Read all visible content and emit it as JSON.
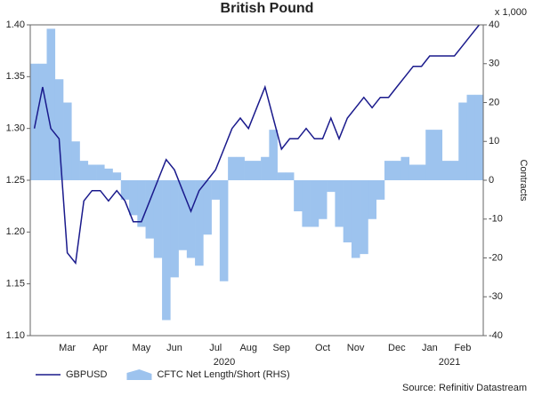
{
  "chart_data": {
    "type": "dual_line_area",
    "title": "British Pound",
    "y2_unit": "x 1,000",
    "y2_label": "Contracts",
    "source": "Source: Refinitiv Datastream",
    "year_labels": [
      "2020",
      "2021"
    ],
    "categories": [
      null,
      null,
      null,
      null,
      "Mar",
      null,
      null,
      null,
      "Apr",
      null,
      null,
      null,
      null,
      "May",
      null,
      null,
      null,
      "Jun",
      null,
      null,
      null,
      null,
      "Jul",
      null,
      null,
      null,
      "Aug",
      null,
      null,
      null,
      "Sep",
      null,
      null,
      null,
      null,
      "Oct",
      null,
      null,
      null,
      "Nov",
      null,
      null,
      null,
      null,
      "Dec",
      null,
      null,
      null,
      "Jan",
      null,
      null,
      null,
      "Feb",
      null,
      null
    ],
    "series": [
      {
        "name": "GBPUSD",
        "color": "#1a1a8c",
        "kind": "line",
        "values": [
          1.3,
          1.34,
          1.3,
          1.29,
          1.18,
          1.17,
          1.23,
          1.24,
          1.24,
          1.23,
          1.24,
          1.23,
          1.21,
          1.21,
          1.23,
          1.25,
          1.27,
          1.26,
          1.24,
          1.22,
          1.24,
          1.25,
          1.26,
          1.28,
          1.3,
          1.31,
          1.3,
          1.32,
          1.34,
          1.31,
          1.28,
          1.29,
          1.29,
          1.3,
          1.29,
          1.29,
          1.31,
          1.29,
          1.31,
          1.32,
          1.33,
          1.32,
          1.33,
          1.33,
          1.34,
          1.35,
          1.36,
          1.36,
          1.37,
          1.37,
          1.37,
          1.37,
          1.38,
          1.39,
          1.4
        ]
      },
      {
        "name": "CFTC Net Length/Short (RHS)",
        "color": "#9dc3ee",
        "kind": "area",
        "axis": "y2",
        "values": [
          30,
          30,
          39,
          26,
          20,
          10,
          5,
          4,
          4,
          3,
          2,
          -5,
          -9,
          -12,
          -15,
          -20,
          -36,
          -25,
          -18,
          -20,
          -22,
          -14,
          -5,
          -26,
          6,
          6,
          5,
          5,
          6,
          13,
          2,
          2,
          -8,
          -12,
          -12,
          -10,
          -3,
          -12,
          -16,
          -20,
          -19,
          -10,
          -5,
          5,
          5,
          6,
          4,
          4,
          13,
          13,
          5,
          5,
          20,
          22,
          22
        ]
      }
    ],
    "ylim": [
      1.1,
      1.4
    ],
    "yticks": [
      {
        "value": 1.1,
        "label": "1.10"
      },
      {
        "value": 1.15,
        "label": "1.15"
      },
      {
        "value": 1.2,
        "label": "1.20"
      },
      {
        "value": 1.25,
        "label": "1.25"
      },
      {
        "value": 1.3,
        "label": "1.30"
      },
      {
        "value": 1.35,
        "label": "1.35"
      },
      {
        "value": 1.4,
        "label": "1.40"
      }
    ],
    "y2lim": [
      -40,
      40
    ],
    "y2ticks": [
      -40,
      -30,
      -20,
      -10,
      0,
      10,
      20,
      30,
      40
    ],
    "grid": false
  }
}
